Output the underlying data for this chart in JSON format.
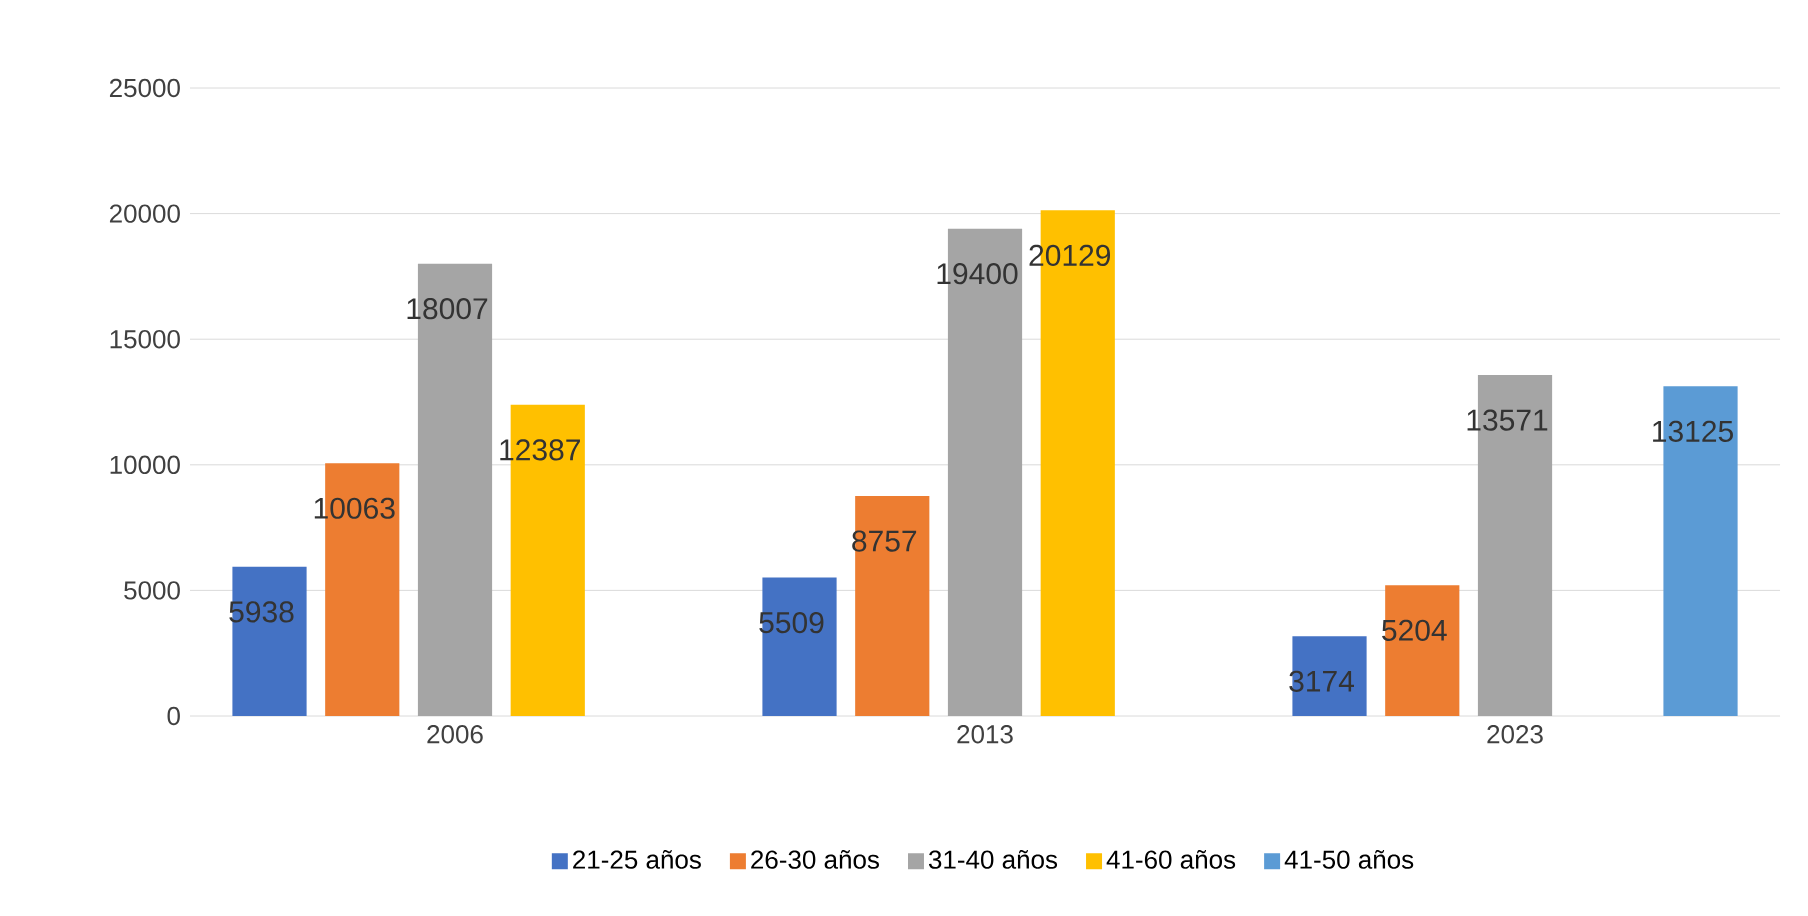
{
  "chart_data": {
    "type": "bar",
    "categories": [
      "2006",
      "2013",
      "2023"
    ],
    "series": [
      {
        "name": "21-25 años",
        "color": "#4472c4",
        "values": [
          5938,
          5509,
          3174
        ]
      },
      {
        "name": "26-30 años",
        "color": "#ed7d31",
        "values": [
          10063,
          8757,
          5204
        ]
      },
      {
        "name": "31-40 años",
        "color": "#a5a5a5",
        "values": [
          18007,
          19400,
          13571
        ]
      },
      {
        "name": "41-60 años",
        "color": "#ffc000",
        "values": [
          12387,
          20129,
          null
        ]
      },
      {
        "name": "41-50 años",
        "color": "#5b9bd5",
        "values": [
          null,
          null,
          13125
        ]
      }
    ],
    "ylim": [
      0,
      25000
    ],
    "yticks": [
      0,
      5000,
      10000,
      15000,
      20000,
      25000
    ],
    "grid": "y",
    "legend": "bottom",
    "data_labels": true
  }
}
